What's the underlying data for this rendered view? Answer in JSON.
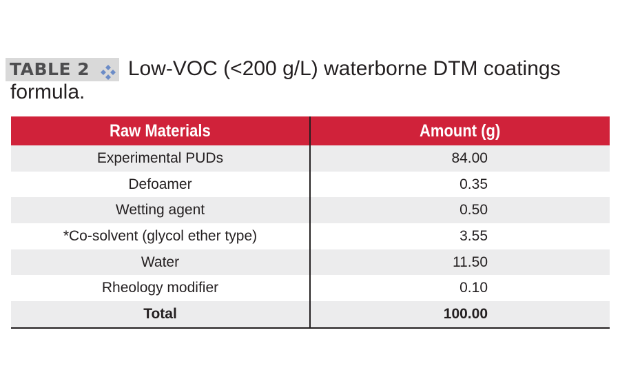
{
  "caption": {
    "label": "TABLE 2",
    "icon": "diamond-cluster-icon",
    "icon_color": "#6b8cc7",
    "title_line1": "Low-VOC (<200 g/L) waterborne DTM coatings",
    "title_line2": "formula."
  },
  "table": {
    "header_color": "#d0223a",
    "shade_color": "#ececed",
    "headers": [
      "Raw Materials",
      "Amount (g)"
    ],
    "rows": [
      {
        "material": "Experimental PUDs",
        "amount": "84.00"
      },
      {
        "material": "Defoamer",
        "amount": "0.35"
      },
      {
        "material": "Wetting agent",
        "amount": "0.50"
      },
      {
        "material": "*Co-solvent (glycol ether type)",
        "amount": "3.55"
      },
      {
        "material": "Water",
        "amount": "11.50"
      },
      {
        "material": "Rheology modifier",
        "amount": "0.10"
      }
    ],
    "total": {
      "material": "Total",
      "amount": "100.00"
    }
  }
}
